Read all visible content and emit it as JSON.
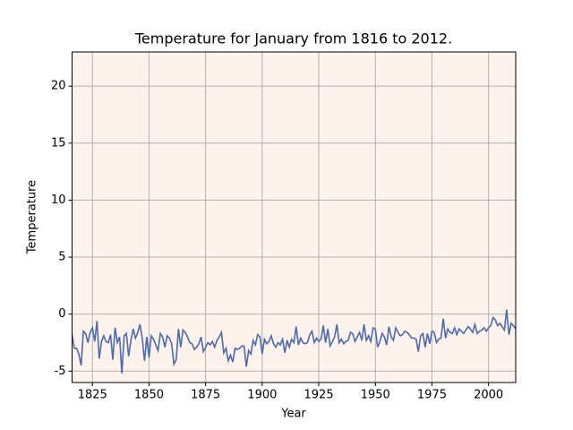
{
  "chart_data": {
    "type": "line",
    "title": "Temperature for January from 1816 to 2012.",
    "xlabel": "Year",
    "ylabel": "Temperature",
    "x": [
      1816,
      1817,
      1818,
      1819,
      1820,
      1821,
      1822,
      1823,
      1824,
      1825,
      1826,
      1827,
      1828,
      1829,
      1830,
      1831,
      1832,
      1833,
      1834,
      1835,
      1836,
      1837,
      1838,
      1839,
      1840,
      1841,
      1842,
      1843,
      1844,
      1845,
      1846,
      1847,
      1848,
      1849,
      1850,
      1851,
      1852,
      1853,
      1854,
      1855,
      1856,
      1857,
      1858,
      1859,
      1860,
      1861,
      1862,
      1863,
      1864,
      1865,
      1866,
      1867,
      1868,
      1869,
      1870,
      1871,
      1872,
      1873,
      1874,
      1875,
      1876,
      1877,
      1878,
      1879,
      1880,
      1881,
      1882,
      1883,
      1884,
      1885,
      1886,
      1887,
      1888,
      1889,
      1890,
      1891,
      1892,
      1893,
      1894,
      1895,
      1896,
      1897,
      1898,
      1899,
      1900,
      1901,
      1902,
      1903,
      1904,
      1905,
      1906,
      1907,
      1908,
      1909,
      1910,
      1911,
      1912,
      1913,
      1914,
      1915,
      1916,
      1917,
      1918,
      1919,
      1920,
      1921,
      1922,
      1923,
      1924,
      1925,
      1926,
      1927,
      1928,
      1929,
      1930,
      1931,
      1932,
      1933,
      1934,
      1935,
      1936,
      1937,
      1938,
      1939,
      1940,
      1941,
      1942,
      1943,
      1944,
      1945,
      1946,
      1947,
      1948,
      1949,
      1950,
      1951,
      1952,
      1953,
      1954,
      1955,
      1956,
      1957,
      1958,
      1959,
      1960,
      1961,
      1962,
      1963,
      1964,
      1965,
      1966,
      1967,
      1968,
      1969,
      1970,
      1971,
      1972,
      1973,
      1974,
      1975,
      1976,
      1977,
      1978,
      1979,
      1980,
      1981,
      1982,
      1983,
      1984,
      1985,
      1986,
      1987,
      1988,
      1989,
      1990,
      1991,
      1992,
      1993,
      1994,
      1995,
      1996,
      1997,
      1998,
      1999,
      2000,
      2001,
      2002,
      2003,
      2004,
      2005,
      2006,
      2007,
      2008,
      2009,
      2010,
      2011,
      2012
    ],
    "values": [
      -1.8,
      -3.0,
      -3.0,
      -3.5,
      -4.5,
      -1.5,
      -1.7,
      -2.5,
      -1.6,
      -1.2,
      -2.4,
      -0.6,
      -3.9,
      -2.4,
      -1.9,
      -2.4,
      -2.5,
      -1.8,
      -4.0,
      -1.2,
      -2.5,
      -2.0,
      -5.2,
      -1.9,
      -1.7,
      -3.7,
      -2.3,
      -1.3,
      -2.1,
      -1.6,
      -0.9,
      -2.1,
      -4.1,
      -2.0,
      -3.8,
      -1.9,
      -2.2,
      -2.7,
      -3.2,
      -1.7,
      -2.0,
      -2.9,
      -1.9,
      -2.1,
      -2.6,
      -4.4,
      -4.0,
      -1.3,
      -2.9,
      -1.4,
      -1.6,
      -2.0,
      -2.5,
      -2.6,
      -3.1,
      -2.9,
      -2.6,
      -2.0,
      -3.3,
      -2.9,
      -2.5,
      -2.7,
      -2.4,
      -2.9,
      -2.3,
      -2.0,
      -1.6,
      -3.4,
      -3.0,
      -4.1,
      -3.6,
      -4.2,
      -3.0,
      -3.1,
      -3.0,
      -2.8,
      -2.8,
      -4.6,
      -3.2,
      -3.5,
      -2.3,
      -2.7,
      -1.8,
      -2.0,
      -3.5,
      -2.2,
      -2.6,
      -2.4,
      -1.9,
      -2.6,
      -2.9,
      -2.5,
      -2.7,
      -2.2,
      -3.4,
      -2.3,
      -2.9,
      -2.2,
      -2.5,
      -1.1,
      -2.7,
      -2.1,
      -2.5,
      -2.6,
      -2.5,
      -1.8,
      -1.5,
      -2.5,
      -2.1,
      -2.4,
      -2.2,
      -1.0,
      -2.5,
      -1.3,
      -2.8,
      -2.4,
      -2.0,
      -0.9,
      -2.5,
      -2.2,
      -2.6,
      -2.4,
      -2.3,
      -1.6,
      -1.7,
      -2.4,
      -2.0,
      -1.6,
      -2.3,
      -0.9,
      -2.3,
      -1.9,
      -2.4,
      -1.2,
      -1.3,
      -2.9,
      -2.4,
      -1.7,
      -2.0,
      -2.7,
      -1.1,
      -2.0,
      -2.3,
      -1.2,
      -1.6,
      -1.9,
      -1.8,
      -1.5,
      -1.6,
      -1.8,
      -2.1,
      -2.1,
      -2.2,
      -3.3,
      -1.9,
      -1.7,
      -2.9,
      -1.7,
      -2.6,
      -1.5,
      -1.6,
      -2.5,
      -2.2,
      -2.1,
      -0.4,
      -2.1,
      -1.3,
      -1.6,
      -1.7,
      -1.2,
      -1.8,
      -1.3,
      -1.5,
      -1.7,
      -1.4,
      -1.1,
      -1.3,
      -1.6,
      -0.9,
      -1.7,
      -1.5,
      -1.4,
      -1.2,
      -1.5,
      -1.2,
      -1.0,
      -0.3,
      -0.5,
      -1.0,
      -0.8,
      -1.1,
      -1.4,
      0.4,
      -1.8,
      -0.8,
      -1.0,
      -1.3
    ],
    "color": "#4c6ab0",
    "background": "#fdf2ec",
    "xlim": [
      1816,
      2012
    ],
    "ylim": [
      -6,
      23
    ],
    "xticks": [
      1825,
      1850,
      1875,
      1900,
      1925,
      1950,
      1975,
      2000
    ],
    "yticks": [
      -5,
      0,
      5,
      10,
      15,
      20
    ],
    "grid": true
  }
}
